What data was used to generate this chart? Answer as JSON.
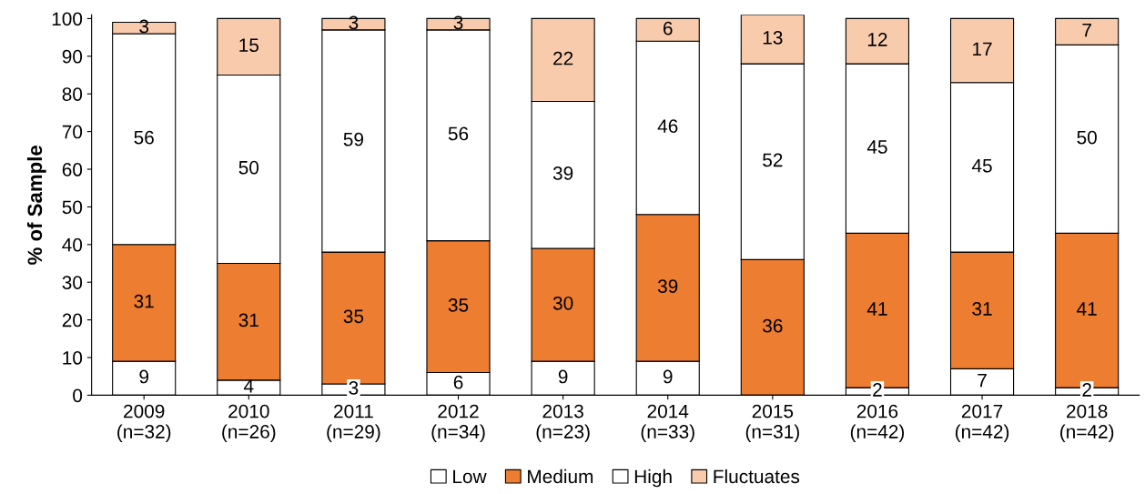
{
  "chart_data": {
    "type": "bar",
    "stacked": true,
    "ylabel": "% of Sample",
    "categories": [
      "2009\n(n=32)",
      "2010\n(n=26)",
      "2011\n(n=29)",
      "2012\n(n=34)",
      "2013\n(n=23)",
      "2014\n(n=33)",
      "2015\n(n=31)",
      "2016\n(n=42)",
      "2017\n(n=42)",
      "2018\n(n=42)"
    ],
    "series": [
      {
        "name": "Low",
        "color": "#ffffff",
        "values": [
          9,
          4,
          3,
          6,
          9,
          9,
          null,
          2,
          7,
          2
        ]
      },
      {
        "name": "Medium",
        "color": "#ed7d31",
        "values": [
          31,
          31,
          35,
          35,
          30,
          39,
          36,
          41,
          31,
          41
        ]
      },
      {
        "name": "High",
        "color": "#ffffff",
        "values": [
          56,
          50,
          59,
          56,
          39,
          46,
          52,
          45,
          45,
          50
        ]
      },
      {
        "name": "Fluctuates",
        "color": "#f8cbad",
        "values": [
          3,
          15,
          3,
          3,
          22,
          6,
          13,
          12,
          17,
          7
        ]
      }
    ],
    "ylim": [
      0,
      101
    ],
    "yticks": [
      0,
      10,
      20,
      30,
      40,
      50,
      60,
      70,
      80,
      90,
      100
    ],
    "data_labels": true,
    "legend": "bottom",
    "grid": false
  }
}
